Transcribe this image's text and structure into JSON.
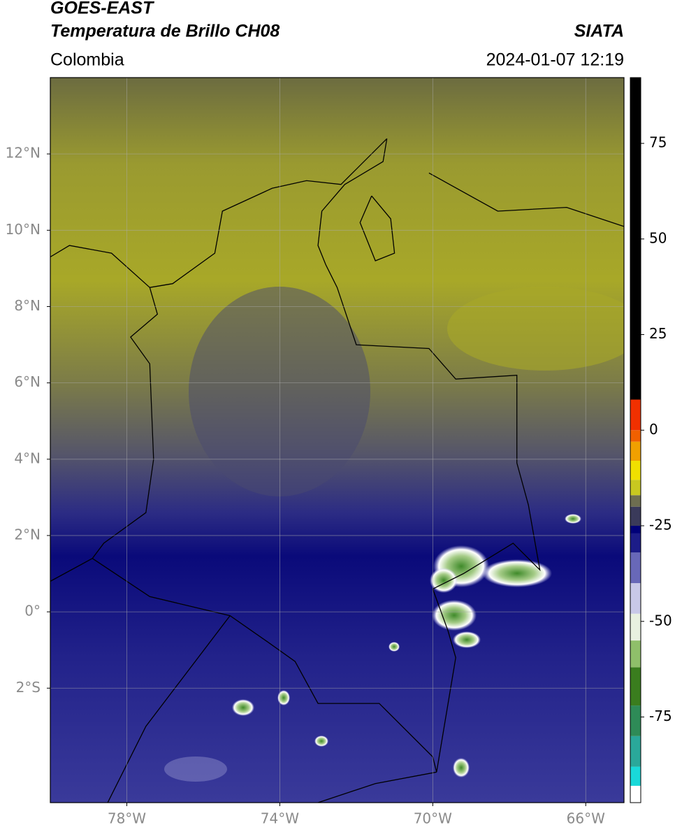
{
  "header": {
    "title": "GOES-EAST",
    "subtitle": "Temperatura de Brillo CH08",
    "source": "SIATA",
    "region": "Colombia",
    "datetime": "2024-01-07 12:19"
  },
  "map": {
    "xlim": [
      -80,
      -65
    ],
    "ylim": [
      -5,
      14
    ],
    "grid": true,
    "xticks": [
      {
        "value": -78,
        "label": "78°W"
      },
      {
        "value": -74,
        "label": "74°W"
      },
      {
        "value": -70,
        "label": "70°W"
      },
      {
        "value": -66,
        "label": "66°W"
      }
    ],
    "yticks": [
      {
        "value": 12,
        "label": "12°N"
      },
      {
        "value": 10,
        "label": "10°N"
      },
      {
        "value": 8,
        "label": "8°N"
      },
      {
        "value": 6,
        "label": "6°N"
      },
      {
        "value": 4,
        "label": "4°N"
      },
      {
        "value": 2,
        "label": "2°N"
      },
      {
        "value": 0,
        "label": "0°"
      },
      {
        "value": -2,
        "label": "2°S"
      }
    ]
  },
  "colorbar": {
    "lim": [
      -97.4,
      92.2
    ],
    "ticks": [
      75,
      50,
      25,
      0,
      -25,
      -50,
      -75
    ],
    "colors": [
      {
        "value": -97.4,
        "color": "#ffffff"
      },
      {
        "value": -93,
        "color": "#19d9d9"
      },
      {
        "value": -88,
        "color": "#2aa89a"
      },
      {
        "value": -80,
        "color": "#2e8b57"
      },
      {
        "value": -72,
        "color": "#3a7d1e"
      },
      {
        "value": -62,
        "color": "#8fbf6a"
      },
      {
        "value": -55,
        "color": "#e8f0e0"
      },
      {
        "value": -48,
        "color": "#c8c8e8"
      },
      {
        "value": -40,
        "color": "#6868b8"
      },
      {
        "value": -32,
        "color": "#1c1c88"
      },
      {
        "value": -27,
        "color": "#000078"
      },
      {
        "value": -25,
        "color": "#3a3a5a"
      },
      {
        "value": -20,
        "color": "#6e6e50"
      },
      {
        "value": -17,
        "color": "#c8c820"
      },
      {
        "value": -13,
        "color": "#f0e000"
      },
      {
        "value": -8,
        "color": "#f0a000"
      },
      {
        "value": -3,
        "color": "#f06000"
      },
      {
        "value": 0,
        "color": "#f03000"
      },
      {
        "value": 8,
        "color": "#000000"
      }
    ]
  }
}
